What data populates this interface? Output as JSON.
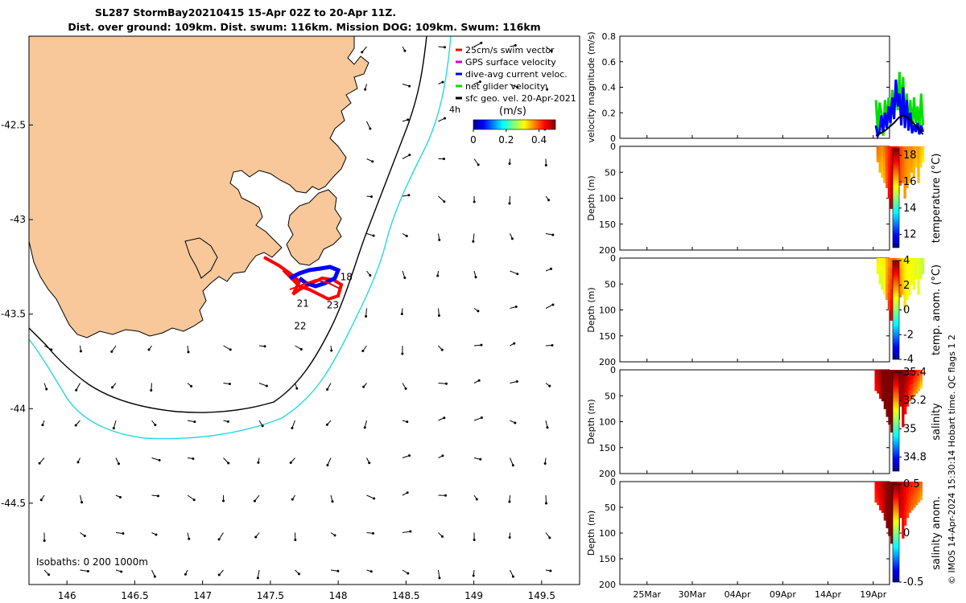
{
  "title": {
    "line1": "SL287 StormBay20210415 15-Apr 02Z to 20-Apr 11Z.",
    "line2": "Dist. over ground: 109km. Dist. swum: 116km. Mission DOG: 109km. Swum: 116km"
  },
  "side_note": "© IMOS 14-Apr-2024 15:30:14 Hobart time. QC flags 1  2",
  "colors": {
    "land": "#f8c89a",
    "isobath_200": "#000000",
    "isobath_1000": "#27d8dc",
    "swim_vector": "#ff0000",
    "gps_surface": "#d400d4",
    "dive_avg": "#0000ff",
    "net_glider": "#00e000",
    "sfc_geo": "#000000"
  },
  "chart_data": [
    {
      "type": "map",
      "title": "SL287 StormBay20210415 15-Apr 02Z to 20-Apr 11Z.",
      "x_ticks": [
        "146",
        "146.5",
        "147",
        "147.5",
        "148",
        "148.5",
        "149",
        "149.5"
      ],
      "y_ticks": [
        "-42.5",
        "-43",
        "-43.5",
        "-44",
        "-44.5"
      ],
      "xlim": [
        145.72,
        149.78
      ],
      "ylim": [
        -44.93,
        -42.03
      ],
      "legend": [
        {
          "label": "25cm/s swim vector",
          "color": "#ff0000"
        },
        {
          "label": "GPS surface velocity",
          "color": "#d400d4"
        },
        {
          "label": "dive-avg current veloc.",
          "color": "#0000ff"
        },
        {
          "label": "net glider velocity",
          "color": "#00e000"
        },
        {
          "label": "sfc geo. vel. 20-Apr-2021",
          "color": "#000000"
        }
      ],
      "legend_extra": "4h",
      "colorbar": {
        "label": "(m/s)",
        "ticks": [
          "0",
          "0.2",
          "0.4"
        ],
        "range": [
          0,
          0.5
        ]
      },
      "day_labels": [
        {
          "text": "18",
          "lon": 148.06,
          "lat": -43.32
        },
        {
          "text": "21",
          "lon": 147.74,
          "lat": -43.46
        },
        {
          "text": "23",
          "lon": 147.96,
          "lat": -43.47
        },
        {
          "text": "22",
          "lon": 147.72,
          "lat": -43.58
        }
      ],
      "isobath_label": "Isobaths: 0   200  1000m"
    },
    {
      "type": "line",
      "ylabel": "velocity magnitude (m/s)",
      "ylim": [
        0,
        0.8
      ],
      "y_ticks": [
        "0",
        "0.2",
        "0.4",
        "0.6",
        "0.8"
      ],
      "series": [
        {
          "name": "net glider velocity",
          "color": "#00e000",
          "t": [
            25.3,
            25.5,
            25.7,
            25.9,
            26.1,
            26.3,
            26.5,
            26.7,
            26.9,
            27.1,
            27.3,
            27.5,
            27.7,
            27.9,
            28.1,
            28.3,
            28.5,
            28.7,
            28.9,
            29.1,
            29.3,
            29.5,
            29.7,
            29.9,
            30.1,
            30.3,
            30.5
          ],
          "values": [
            0.3,
            0.05,
            0.28,
            0.2,
            0.02,
            0.3,
            0.12,
            0.32,
            0.1,
            0.38,
            0.15,
            0.45,
            0.22,
            0.52,
            0.2,
            0.48,
            0.12,
            0.35,
            0.08,
            0.3,
            0.05,
            0.32,
            0.12,
            0.25,
            0.05,
            0.35,
            0.1
          ]
        },
        {
          "name": "dive-avg current veloc.",
          "color": "#0000ff",
          "t": [
            25.3,
            25.5,
            25.7,
            25.9,
            26.1,
            26.3,
            26.5,
            26.7,
            26.9,
            27.1,
            27.3,
            27.5,
            27.7,
            27.9,
            28.1,
            28.3,
            28.5,
            28.7,
            28.9,
            29.1,
            29.3,
            29.5,
            29.7,
            29.9,
            30.1,
            30.3,
            30.5
          ],
          "values": [
            0.1,
            0.02,
            0.05,
            0.18,
            0.05,
            0.2,
            0.08,
            0.25,
            0.12,
            0.32,
            0.15,
            0.46,
            0.25,
            0.35,
            0.1,
            0.4,
            0.08,
            0.3,
            0.06,
            0.2,
            0.04,
            0.1,
            0.05,
            0.12,
            0.03,
            0.1,
            0.05
          ]
        },
        {
          "name": "sfc geo. vel.",
          "color": "#000000",
          "t": [
            25.3,
            25.8,
            26.3,
            26.8,
            27.3,
            27.8,
            28.3,
            28.8,
            29.3,
            29.8,
            30.3,
            30.5
          ],
          "values": [
            0.02,
            0.04,
            0.06,
            0.09,
            0.12,
            0.16,
            0.18,
            0.16,
            0.13,
            0.09,
            0.05,
            0.03
          ]
        }
      ]
    },
    {
      "type": "heatmap",
      "ylabel": "Depth (m)",
      "ylim": [
        0,
        200
      ],
      "y_ticks": [
        "0",
        "50",
        "100",
        "150",
        "200"
      ],
      "colorbar": {
        "label": "temperature (°C)",
        "ticks": [
          "12",
          "14",
          "16",
          "18"
        ],
        "range": [
          11,
          18.5
        ]
      },
      "t": [
        25.5,
        25.75,
        26.0,
        26.25,
        26.5,
        26.75,
        27.0,
        27.25,
        27.5,
        27.75,
        28.0,
        28.25,
        28.5,
        28.75,
        29.0,
        29.25,
        29.5,
        29.75,
        30.0,
        30.25,
        30.5
      ],
      "max_depth": [
        30,
        50,
        60,
        70,
        80,
        100,
        120,
        120,
        115,
        90,
        75,
        70,
        100,
        80,
        70,
        50,
        60,
        40,
        70,
        40,
        30
      ],
      "surface_value": [
        16.8,
        16.6,
        16.5,
        16.7,
        17.0,
        17.2,
        17.5,
        17.7,
        17.6,
        17.4,
        17.1,
        16.9,
        16.7,
        16.6,
        16.5,
        16.6,
        16.4,
        16.3,
        16.4,
        16.2,
        16.0
      ],
      "bottom_value": [
        16.4,
        16.2,
        16.0,
        16.2,
        16.8,
        17.5,
        18.0,
        17.8,
        17.6,
        17.2,
        16.9,
        16.7,
        16.4,
        16.3,
        16.2,
        16.3,
        16.1,
        16.0,
        16.1,
        15.9,
        15.7
      ]
    },
    {
      "type": "heatmap",
      "ylabel": "Depth (m)",
      "ylim": [
        0,
        200
      ],
      "y_ticks": [
        "0",
        "50",
        "100",
        "150",
        "200"
      ],
      "colorbar": {
        "label": "temp. anom. (°C)",
        "ticks": [
          "-4",
          "-2",
          "0",
          "2",
          "4"
        ],
        "range": [
          -4,
          4
        ]
      },
      "t": [
        25.5,
        25.75,
        26.0,
        26.25,
        26.5,
        26.75,
        27.0,
        27.25,
        27.5,
        27.75,
        28.0,
        28.25,
        28.5,
        28.75,
        29.0,
        29.25,
        29.5,
        29.75,
        30.0,
        30.25,
        30.5
      ],
      "max_depth": [
        30,
        50,
        60,
        70,
        80,
        100,
        120,
        120,
        115,
        90,
        75,
        70,
        100,
        80,
        70,
        50,
        60,
        40,
        70,
        40,
        30
      ],
      "surface_value": [
        1.2,
        1.0,
        0.9,
        1.1,
        1.5,
        1.8,
        2.0,
        2.2,
        2.0,
        1.8,
        1.5,
        1.3,
        1.1,
        1.0,
        0.9,
        1.0,
        0.8,
        0.7,
        0.8,
        0.6,
        0.5
      ],
      "bottom_value": [
        0.8,
        0.7,
        0.6,
        0.9,
        1.8,
        2.6,
        3.2,
        3.0,
        2.8,
        2.4,
        2.0,
        1.6,
        1.2,
        1.0,
        0.9,
        1.0,
        0.8,
        0.7,
        0.8,
        0.6,
        0.4
      ]
    },
    {
      "type": "heatmap",
      "ylabel": "Depth (m)",
      "ylim": [
        0,
        200
      ],
      "y_ticks": [
        "0",
        "50",
        "100",
        "150",
        "200"
      ],
      "colorbar": {
        "label": "salinity",
        "ticks": [
          "34.8",
          "35",
          "35.2",
          "35.4"
        ],
        "range": [
          34.7,
          35.4
        ]
      },
      "t": [
        25.3,
        25.55,
        25.8,
        26.05,
        26.3,
        26.55,
        26.8,
        27.05,
        27.3,
        27.55,
        27.8,
        28.05,
        28.3,
        28.55,
        28.8,
        29.05,
        29.3,
        29.55,
        29.8,
        30.05,
        30.3
      ],
      "max_depth": [
        40,
        45,
        55,
        60,
        75,
        90,
        105,
        120,
        120,
        100,
        95,
        70,
        110,
        85,
        70,
        60,
        55,
        50,
        45,
        40,
        35
      ],
      "surface_value": [
        35.34,
        35.36,
        35.38,
        35.4,
        35.4,
        35.4,
        35.4,
        35.4,
        35.4,
        35.4,
        35.4,
        35.4,
        35.4,
        35.4,
        35.38,
        35.36,
        35.35,
        35.32,
        35.3,
        35.28,
        35.26
      ],
      "bottom_value": [
        35.3,
        35.32,
        35.35,
        35.4,
        35.4,
        35.4,
        35.4,
        35.4,
        35.4,
        35.4,
        35.38,
        35.35,
        35.33,
        35.3,
        35.28,
        35.25,
        35.23,
        35.2,
        35.2,
        35.18,
        35.15
      ]
    },
    {
      "type": "heatmap",
      "ylabel": "Depth (m)",
      "ylim": [
        0,
        200
      ],
      "y_ticks": [
        "0",
        "50",
        "100",
        "150",
        "200"
      ],
      "colorbar": {
        "label": "salinity anom.",
        "ticks": [
          "-0.5",
          "0",
          "0.5"
        ],
        "range": [
          -0.5,
          0.5
        ]
      },
      "t": [
        25.3,
        25.55,
        25.8,
        26.05,
        26.3,
        26.55,
        26.8,
        27.05,
        27.3,
        27.55,
        27.8,
        28.05,
        28.3,
        28.55,
        28.8,
        29.05,
        29.3,
        29.55,
        29.8,
        30.05,
        30.3
      ],
      "max_depth": [
        40,
        45,
        55,
        60,
        75,
        90,
        105,
        120,
        120,
        100,
        95,
        70,
        110,
        85,
        70,
        60,
        55,
        50,
        45,
        40,
        35
      ],
      "surface_value": [
        0.38,
        0.4,
        0.42,
        0.44,
        0.46,
        0.48,
        0.5,
        0.5,
        0.5,
        0.48,
        0.46,
        0.44,
        0.42,
        0.4,
        0.38,
        0.36,
        0.35,
        0.33,
        0.32,
        0.3,
        0.28
      ],
      "bottom_value": [
        0.32,
        0.34,
        0.36,
        0.4,
        0.45,
        0.5,
        0.5,
        0.5,
        0.5,
        0.48,
        0.44,
        0.4,
        0.36,
        0.33,
        0.3,
        0.28,
        0.26,
        0.25,
        0.24,
        0.22,
        0.2
      ]
    },
    {
      "type": "time_axis",
      "x_ticks": [
        {
          "label": "25Mar",
          "day": 0
        },
        {
          "label": "30Mar",
          "day": 5
        },
        {
          "label": "04Apr",
          "day": 10
        },
        {
          "label": "09Apr",
          "day": 15
        },
        {
          "label": "14Apr",
          "day": 20
        },
        {
          "label": "19Apr",
          "day": 25
        }
      ],
      "xlim": [
        -3,
        26.8
      ]
    }
  ]
}
